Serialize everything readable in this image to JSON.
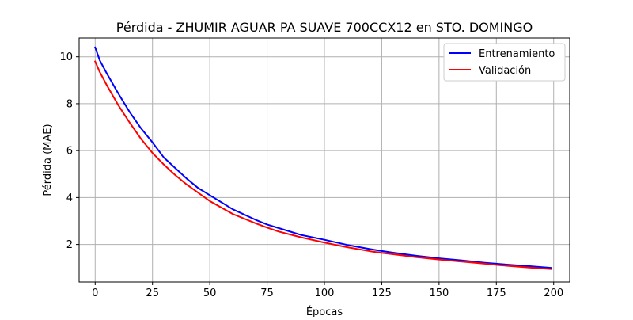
{
  "chart_data": {
    "type": "line",
    "title": "Pérdida - ZHUMIR AGUAR PA SUAVE 700CCX12 en STO. DOMINGO",
    "xlabel": "Épocas",
    "ylabel": "Pérdida (MAE)",
    "xlim": [
      -7,
      207
    ],
    "ylim": [
      0.4,
      10.8
    ],
    "xticks": [
      0,
      25,
      50,
      75,
      100,
      125,
      150,
      175,
      200
    ],
    "yticks": [
      2,
      4,
      6,
      8,
      10
    ],
    "grid": true,
    "legend_position": "top-right",
    "colors": {
      "Entrenamiento": "#0000ff",
      "Validación": "#ff0000"
    },
    "series": [
      {
        "name": "Entrenamiento",
        "x": [
          0,
          2,
          5,
          10,
          15,
          20,
          25,
          30,
          35,
          40,
          45,
          50,
          60,
          70,
          75,
          80,
          90,
          100,
          110,
          120,
          125,
          130,
          140,
          150,
          160,
          170,
          175,
          180,
          190,
          199
        ],
        "y": [
          10.4,
          9.85,
          9.3,
          8.45,
          7.65,
          6.95,
          6.35,
          5.7,
          5.25,
          4.8,
          4.4,
          4.1,
          3.5,
          3.05,
          2.85,
          2.7,
          2.4,
          2.2,
          1.98,
          1.8,
          1.72,
          1.65,
          1.52,
          1.41,
          1.32,
          1.22,
          1.18,
          1.14,
          1.07,
          1.0
        ]
      },
      {
        "name": "Validación",
        "x": [
          0,
          2,
          5,
          10,
          15,
          20,
          25,
          30,
          35,
          40,
          45,
          50,
          60,
          70,
          75,
          80,
          90,
          100,
          110,
          120,
          125,
          130,
          140,
          150,
          160,
          170,
          175,
          180,
          190,
          199
        ],
        "y": [
          9.8,
          9.35,
          8.8,
          7.95,
          7.2,
          6.5,
          5.9,
          5.4,
          4.95,
          4.55,
          4.2,
          3.85,
          3.3,
          2.9,
          2.72,
          2.55,
          2.3,
          2.08,
          1.88,
          1.71,
          1.64,
          1.58,
          1.46,
          1.36,
          1.27,
          1.18,
          1.13,
          1.09,
          1.01,
          0.95
        ]
      }
    ]
  }
}
